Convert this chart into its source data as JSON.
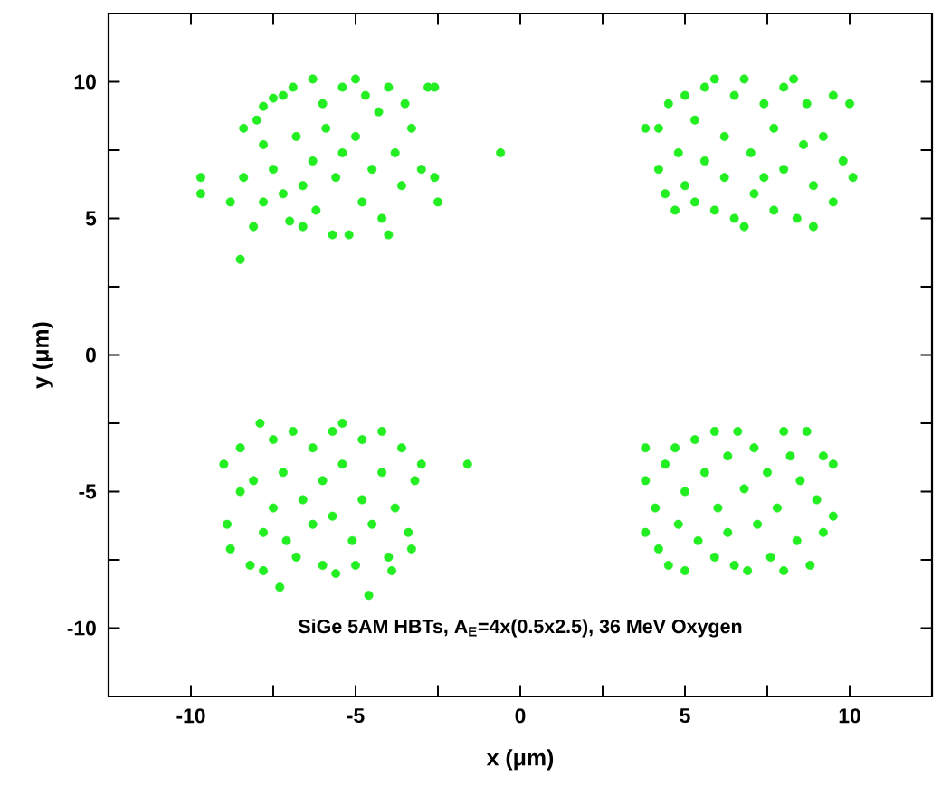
{
  "chart_data": {
    "type": "scatter",
    "xlabel": "x (μm)",
    "ylabel": "y (μm)",
    "annotations": [
      "SiGe 5AM HBTs, A$_{E}$=4x(0.5x2.5), 36 MeV Oxygen"
    ],
    "xlim": [
      -12.5,
      12.5
    ],
    "ylim": [
      -12.5,
      12.5
    ],
    "xticks": [
      -10,
      {
        "value": -7.5,
        "label": null
      },
      -5,
      {
        "value": -2.5,
        "label": null
      },
      0,
      {
        "value": 2.5,
        "label": null
      },
      5,
      {
        "value": 7.5,
        "label": null
      },
      10
    ],
    "yticks": [
      -10,
      {
        "value": -7.5,
        "label": null
      },
      -5,
      {
        "value": -2.5,
        "label": null
      },
      0,
      {
        "value": 2.5,
        "label": null
      },
      5,
      {
        "value": 7.5,
        "label": null
      },
      10
    ],
    "marker": "circle",
    "grid": false,
    "series": [
      {
        "color": "#22ee22",
        "x": [
          -9.7,
          -9.7,
          -8.8,
          -8.5,
          -8.4,
          -8.4,
          -8.1,
          -8.0,
          -7.8,
          -7.8,
          -7.8,
          -7.5,
          -7.5,
          -7.2,
          -7.2,
          -7.0,
          -6.9,
          -6.8,
          -6.6,
          -6.6,
          -6.3,
          -6.3,
          -6.2,
          -6.0,
          -5.9,
          -5.7,
          -5.6,
          -5.4,
          -5.4,
          -5.2,
          -5.0,
          -5.0,
          -4.8,
          -4.7,
          -4.5,
          -4.3,
          -4.2,
          -4.0,
          -4.0,
          -3.8,
          -3.6,
          -3.5,
          -3.3,
          -3.0,
          -2.8,
          -2.6,
          -2.5,
          -2.6,
          -0.6,
          3.8,
          4.2,
          4.2,
          4.4,
          4.5,
          4.7,
          4.8,
          5.0,
          5.0,
          5.3,
          5.3,
          5.6,
          5.6,
          5.9,
          5.9,
          6.2,
          6.2,
          6.5,
          6.5,
          6.8,
          6.8,
          7.0,
          7.1,
          7.4,
          7.4,
          7.7,
          7.7,
          8.0,
          8.0,
          8.3,
          8.4,
          8.6,
          8.7,
          8.9,
          8.9,
          9.2,
          9.5,
          9.5,
          9.8,
          10.0,
          10.1,
          -9.0,
          -8.9,
          -8.8,
          -8.5,
          -8.5,
          -8.2,
          -8.1,
          -7.9,
          -7.8,
          -7.8,
          -7.5,
          -7.5,
          -7.3,
          -7.2,
          -7.1,
          -6.9,
          -6.8,
          -6.6,
          -6.3,
          -6.3,
          -6.0,
          -6.0,
          -5.7,
          -5.7,
          -5.6,
          -5.4,
          -5.4,
          -5.1,
          -5.0,
          -4.8,
          -4.8,
          -4.6,
          -4.5,
          -4.2,
          -4.2,
          -4.0,
          -3.9,
          -3.8,
          -3.6,
          -3.4,
          -3.3,
          -3.2,
          -3.0,
          -1.6,
          3.8,
          3.8,
          3.8,
          4.1,
          4.2,
          4.4,
          4.5,
          4.7,
          4.8,
          5.0,
          5.0,
          5.3,
          5.4,
          5.6,
          5.9,
          5.9,
          6.0,
          6.3,
          6.3,
          6.5,
          6.6,
          6.8,
          6.9,
          7.1,
          7.2,
          7.5,
          7.6,
          7.8,
          8.0,
          8.0,
          8.2,
          8.4,
          8.5,
          8.7,
          8.8,
          9.0,
          9.2,
          9.2,
          9.5,
          9.5
        ],
        "values": [
          6.5,
          5.9,
          5.6,
          3.5,
          8.3,
          6.5,
          4.7,
          8.6,
          9.1,
          7.7,
          5.6,
          9.4,
          6.8,
          9.5,
          5.9,
          4.9,
          9.8,
          8.0,
          6.2,
          4.7,
          10.1,
          7.1,
          5.3,
          9.2,
          8.3,
          4.4,
          6.5,
          9.8,
          7.4,
          4.4,
          10.1,
          8.0,
          5.6,
          9.5,
          6.8,
          8.9,
          5.0,
          4.4,
          9.8,
          7.4,
          6.2,
          9.2,
          8.3,
          6.8,
          9.8,
          9.8,
          5.6,
          6.5,
          7.4,
          8.3,
          8.3,
          6.8,
          5.9,
          9.2,
          5.3,
          7.4,
          9.5,
          6.2,
          8.6,
          5.6,
          9.8,
          7.1,
          10.1,
          5.3,
          8.0,
          6.5,
          9.5,
          5.0,
          4.7,
          10.1,
          7.4,
          5.9,
          9.2,
          6.5,
          8.3,
          5.3,
          9.8,
          6.8,
          10.1,
          5.0,
          7.7,
          9.2,
          4.7,
          6.2,
          8.0,
          9.5,
          5.6,
          7.1,
          9.2,
          6.5,
          -4.0,
          -6.2,
          -7.1,
          -5.0,
          -3.4,
          -7.7,
          -4.6,
          -2.5,
          -6.5,
          -7.9,
          -3.1,
          -5.6,
          -8.5,
          -4.3,
          -6.8,
          -2.8,
          -7.4,
          -5.3,
          -3.4,
          -6.2,
          -7.7,
          -4.6,
          -2.8,
          -5.9,
          -8.0,
          -2.5,
          -4.0,
          -6.8,
          -7.7,
          -3.1,
          -5.3,
          -8.8,
          -6.2,
          -2.8,
          -4.3,
          -7.4,
          -7.9,
          -5.6,
          -3.4,
          -6.5,
          -7.1,
          -4.6,
          -4.0,
          -4.0,
          -3.4,
          -4.6,
          -6.5,
          -5.6,
          -7.1,
          -4.0,
          -7.7,
          -3.4,
          -6.2,
          -5.0,
          -7.9,
          -3.1,
          -6.8,
          -4.3,
          -7.4,
          -2.8,
          -5.6,
          -3.7,
          -6.5,
          -7.7,
          -2.8,
          -4.9,
          -7.9,
          -3.4,
          -6.2,
          -4.3,
          -7.4,
          -5.6,
          -2.8,
          -7.9,
          -3.7,
          -6.8,
          -4.6,
          -2.8,
          -7.7,
          -5.3,
          -3.7,
          -6.5,
          -4.0,
          -5.9
        ]
      }
    ]
  }
}
